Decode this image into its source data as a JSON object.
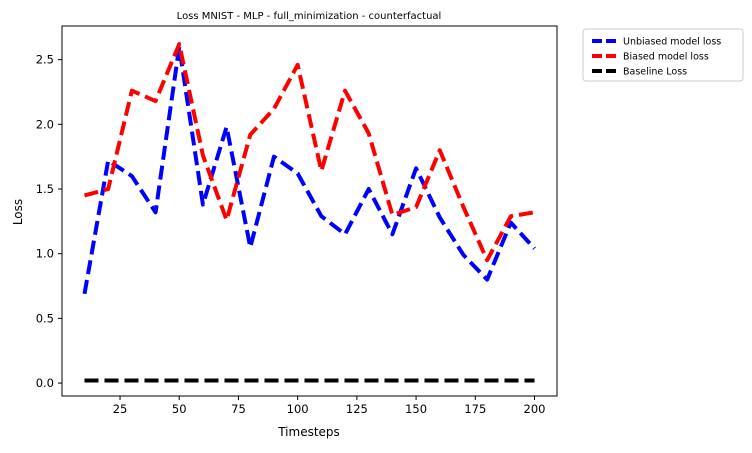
{
  "chart_data": {
    "type": "line",
    "title": "Loss MNIST - MLP - full_minimization - counterfactual",
    "xlabel": "Timesteps",
    "ylabel": "Loss",
    "xlim": [
      0.5,
      209.5
    ],
    "ylim": [
      -0.1,
      2.76
    ],
    "xticks": [
      25,
      50,
      75,
      100,
      125,
      150,
      175,
      200
    ],
    "xtick_labels": [
      "25",
      "50",
      "75",
      "100",
      "125",
      "150",
      "175",
      "200"
    ],
    "yticks": [
      0.0,
      0.5,
      1.0,
      1.5,
      2.0,
      2.5
    ],
    "ytick_labels": [
      "0.0",
      "0.5",
      "1.0",
      "1.5",
      "2.0",
      "2.5"
    ],
    "grid": false,
    "legend_position": "outside-top-right",
    "x": [
      10,
      20,
      30,
      40,
      50,
      60,
      70,
      80,
      90,
      100,
      110,
      120,
      130,
      140,
      150,
      160,
      170,
      180,
      190,
      200
    ],
    "series": [
      {
        "name": "Unbiased model loss",
        "color": "#0000ff",
        "style": "dashed",
        "values": [
          0.69,
          1.72,
          1.6,
          1.32,
          2.6,
          1.38,
          1.98,
          1.05,
          1.75,
          1.62,
          1.29,
          1.15,
          1.5,
          1.15,
          1.66,
          1.28,
          0.99,
          0.8,
          1.24,
          1.04
        ]
      },
      {
        "name": "Biased model loss",
        "color": "#ff0000",
        "style": "dashed",
        "values": [
          1.45,
          1.5,
          2.26,
          2.18,
          2.62,
          1.76,
          1.26,
          1.92,
          2.12,
          2.46,
          1.64,
          2.26,
          1.93,
          1.3,
          1.36,
          1.8,
          1.36,
          0.95,
          1.29,
          1.32
        ]
      },
      {
        "name": "Baseline Loss",
        "color": "#000000",
        "style": "dashed",
        "values": [
          0.02,
          0.02,
          0.02,
          0.02,
          0.02,
          0.02,
          0.02,
          0.02,
          0.02,
          0.02,
          0.02,
          0.02,
          0.02,
          0.02,
          0.02,
          0.02,
          0.02,
          0.02,
          0.02,
          0.02
        ]
      }
    ]
  }
}
